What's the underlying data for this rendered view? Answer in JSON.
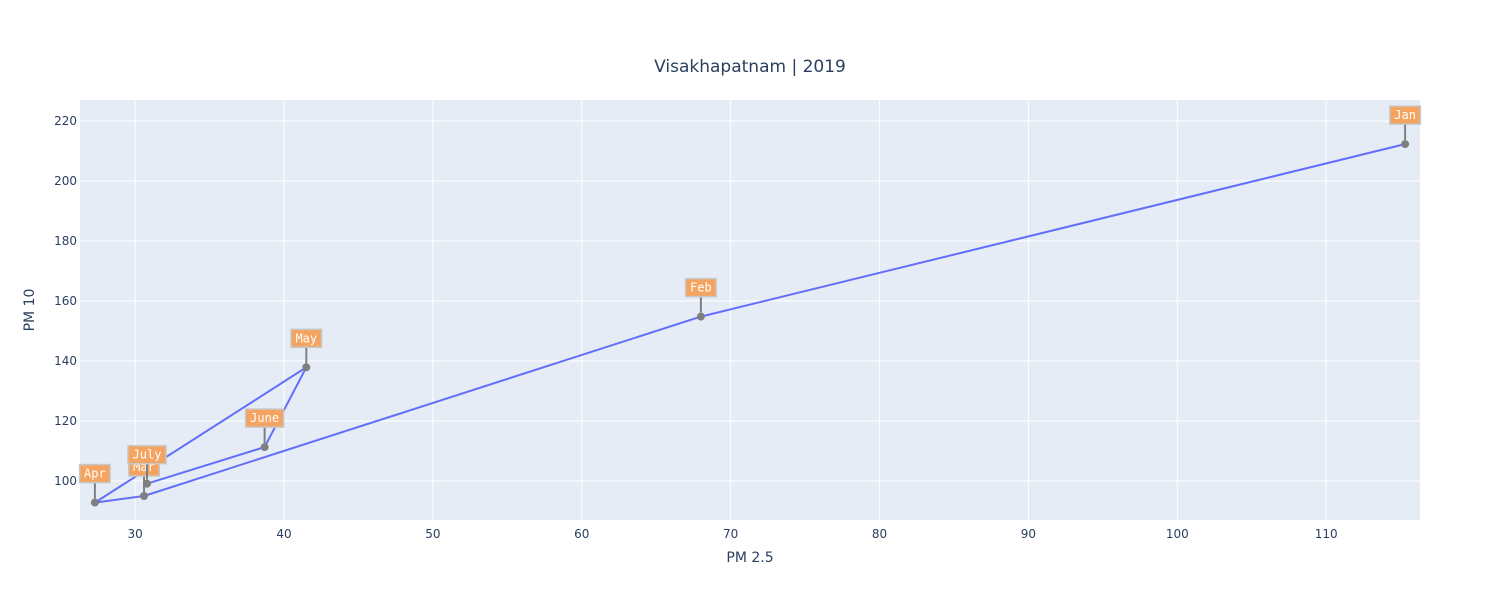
{
  "chart_data": {
    "type": "line",
    "title": "Visakhapatnam | 2019",
    "xlabel": "PM 2.5",
    "ylabel": "PM 10",
    "xlim": [
      26.3,
      116.3
    ],
    "ylim": [
      87,
      227
    ],
    "xticks": [
      30,
      40,
      50,
      60,
      70,
      80,
      90,
      100,
      110
    ],
    "yticks": [
      100,
      120,
      140,
      160,
      180,
      200,
      220
    ],
    "grid": true,
    "series": [
      {
        "points": [
          {
            "x": 115.3,
            "y": 212.3,
            "label": "Jan"
          },
          {
            "x": 68.0,
            "y": 154.8,
            "label": "Feb"
          },
          {
            "x": 30.6,
            "y": 95.0,
            "label": "Mar"
          },
          {
            "x": 27.3,
            "y": 92.8,
            "label": "Apr"
          },
          {
            "x": 41.5,
            "y": 137.9,
            "label": "May"
          },
          {
            "x": 38.7,
            "y": 111.3,
            "label": "June"
          },
          {
            "x": 30.8,
            "y": 99.1,
            "label": "July"
          }
        ]
      }
    ],
    "colors": {
      "line": "#636efa",
      "marker": "#7f7f7f",
      "annotation_bg": "#f4a460",
      "annotation_border": "#c7c7c7",
      "plot_bg": "#e5ecf6"
    }
  }
}
